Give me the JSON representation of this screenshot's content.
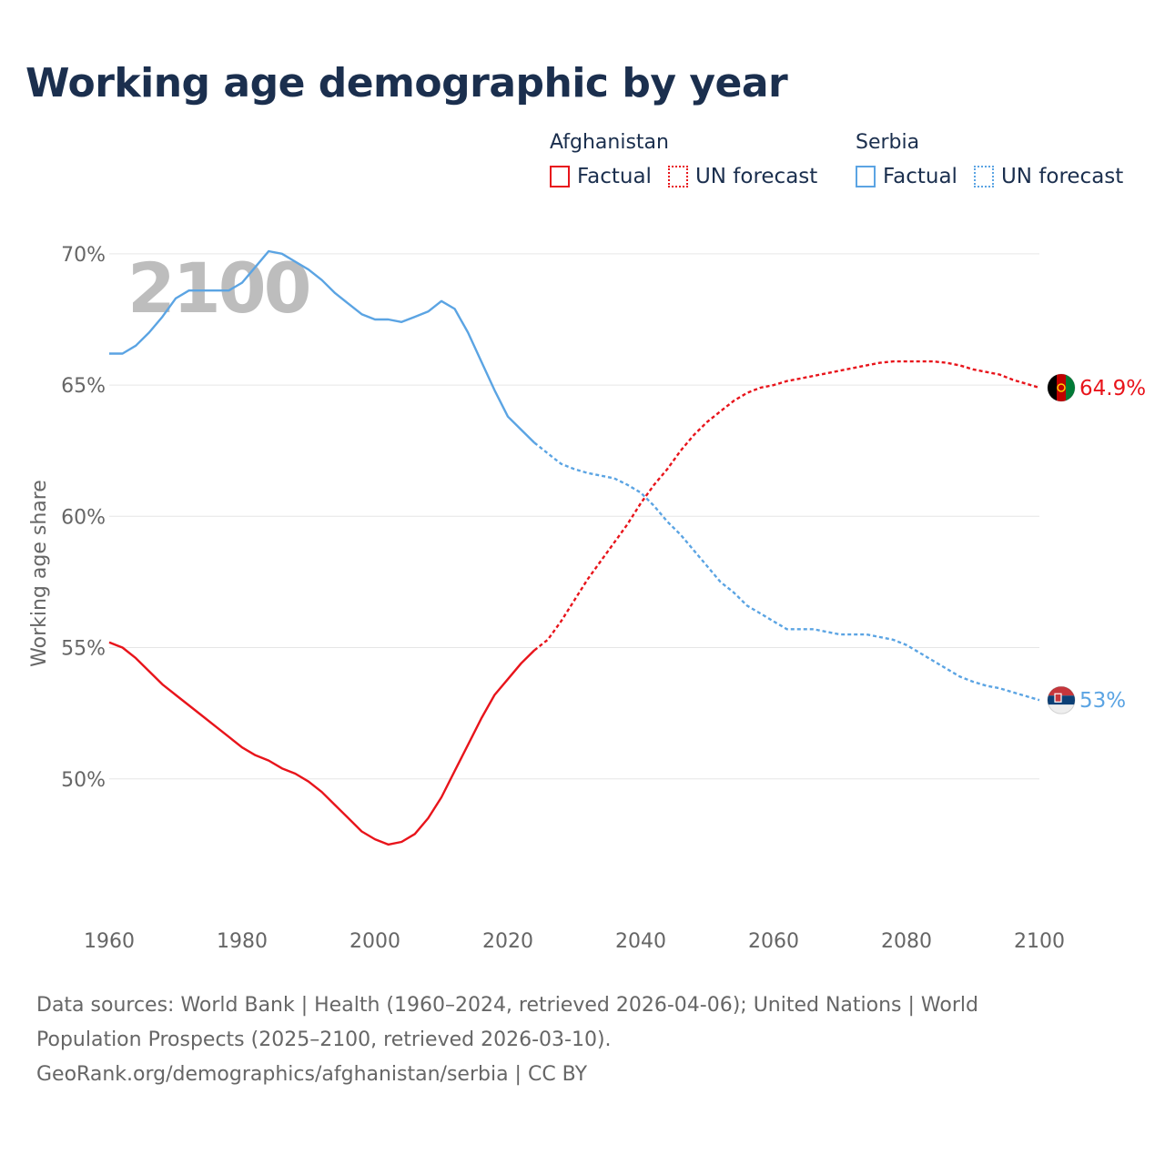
{
  "title": "Working age demographic by year",
  "legend": {
    "groups": [
      {
        "name": "Afghanistan",
        "color": "#e8141b",
        "factual_label": "Factual",
        "forecast_label": "UN forecast"
      },
      {
        "name": "Serbia",
        "color": "#5ba4e3",
        "factual_label": "Factual",
        "forecast_label": "UN forecast"
      }
    ]
  },
  "year_watermark": "2100",
  "sources": {
    "line1": "Data sources: World Bank | Health (1960–2024, retrieved 2026-04-06); United Nations | World Population Prospects (2025–2100, retrieved 2026-03-10).",
    "line2": "GeoRank.org/demographics/afghanistan/serbia | CC BY"
  },
  "chart_data": {
    "type": "line",
    "title": "Working age demographic by year",
    "xlabel": "",
    "ylabel": "Working age share",
    "xlim": [
      1960,
      2100
    ],
    "ylim": [
      45,
      71
    ],
    "x_ticks": [
      1960,
      1980,
      2000,
      2020,
      2040,
      2060,
      2080,
      2100
    ],
    "x_tick_labels": [
      "1960",
      "1980",
      "2000",
      "2020",
      "2040",
      "2060",
      "2080",
      "2100"
    ],
    "y_ticks": [
      50,
      55,
      60,
      65,
      70
    ],
    "y_tick_labels": [
      "50%",
      "55%",
      "60%",
      "65%",
      "70%"
    ],
    "grid": true,
    "series": [
      {
        "name": "Afghanistan",
        "color": "#e8141b",
        "end_label": "64.9%",
        "factual_points": [
          [
            1960,
            55.2
          ],
          [
            1962,
            55.0
          ],
          [
            1964,
            54.6
          ],
          [
            1966,
            54.1
          ],
          [
            1968,
            53.6
          ],
          [
            1970,
            53.2
          ],
          [
            1972,
            52.8
          ],
          [
            1974,
            52.4
          ],
          [
            1976,
            52.0
          ],
          [
            1978,
            51.6
          ],
          [
            1980,
            51.2
          ],
          [
            1982,
            50.9
          ],
          [
            1984,
            50.7
          ],
          [
            1986,
            50.4
          ],
          [
            1988,
            50.2
          ],
          [
            1990,
            49.9
          ],
          [
            1992,
            49.5
          ],
          [
            1994,
            49.0
          ],
          [
            1996,
            48.5
          ],
          [
            1998,
            48.0
          ],
          [
            2000,
            47.7
          ],
          [
            2002,
            47.5
          ],
          [
            2004,
            47.6
          ],
          [
            2006,
            47.9
          ],
          [
            2008,
            48.5
          ],
          [
            2010,
            49.3
          ],
          [
            2012,
            50.3
          ],
          [
            2014,
            51.3
          ],
          [
            2016,
            52.3
          ],
          [
            2018,
            53.2
          ],
          [
            2020,
            53.8
          ],
          [
            2022,
            54.4
          ],
          [
            2024,
            54.9
          ]
        ],
        "forecast_points": [
          [
            2024,
            54.9
          ],
          [
            2026,
            55.3
          ],
          [
            2028,
            56.0
          ],
          [
            2030,
            56.8
          ],
          [
            2032,
            57.6
          ],
          [
            2034,
            58.3
          ],
          [
            2036,
            59.0
          ],
          [
            2038,
            59.7
          ],
          [
            2040,
            60.5
          ],
          [
            2042,
            61.2
          ],
          [
            2044,
            61.8
          ],
          [
            2046,
            62.5
          ],
          [
            2048,
            63.1
          ],
          [
            2050,
            63.6
          ],
          [
            2052,
            64.0
          ],
          [
            2054,
            64.4
          ],
          [
            2056,
            64.7
          ],
          [
            2058,
            64.9
          ],
          [
            2060,
            65.0
          ],
          [
            2062,
            65.15
          ],
          [
            2064,
            65.25
          ],
          [
            2066,
            65.35
          ],
          [
            2068,
            65.45
          ],
          [
            2070,
            65.55
          ],
          [
            2072,
            65.65
          ],
          [
            2074,
            65.75
          ],
          [
            2076,
            65.85
          ],
          [
            2078,
            65.9
          ],
          [
            2080,
            65.9
          ],
          [
            2082,
            65.9
          ],
          [
            2084,
            65.9
          ],
          [
            2086,
            65.85
          ],
          [
            2088,
            65.75
          ],
          [
            2090,
            65.6
          ],
          [
            2092,
            65.5
          ],
          [
            2094,
            65.4
          ],
          [
            2096,
            65.2
          ],
          [
            2098,
            65.05
          ],
          [
            2100,
            64.9
          ]
        ]
      },
      {
        "name": "Serbia",
        "color": "#5ba4e3",
        "end_label": "53%",
        "factual_points": [
          [
            1960,
            66.2
          ],
          [
            1962,
            66.2
          ],
          [
            1964,
            66.5
          ],
          [
            1966,
            67.0
          ],
          [
            1968,
            67.6
          ],
          [
            1970,
            68.3
          ],
          [
            1972,
            68.6
          ],
          [
            1974,
            68.6
          ],
          [
            1976,
            68.6
          ],
          [
            1978,
            68.6
          ],
          [
            1980,
            68.9
          ],
          [
            1982,
            69.5
          ],
          [
            1984,
            70.1
          ],
          [
            1986,
            70.0
          ],
          [
            1988,
            69.7
          ],
          [
            1990,
            69.4
          ],
          [
            1992,
            69.0
          ],
          [
            1994,
            68.5
          ],
          [
            1996,
            68.1
          ],
          [
            1998,
            67.7
          ],
          [
            2000,
            67.5
          ],
          [
            2002,
            67.5
          ],
          [
            2004,
            67.4
          ],
          [
            2006,
            67.6
          ],
          [
            2008,
            67.8
          ],
          [
            2010,
            68.2
          ],
          [
            2012,
            67.9
          ],
          [
            2014,
            67.0
          ],
          [
            2016,
            65.9
          ],
          [
            2018,
            64.8
          ],
          [
            2020,
            63.8
          ],
          [
            2022,
            63.3
          ],
          [
            2024,
            62.8
          ]
        ],
        "forecast_points": [
          [
            2024,
            62.8
          ],
          [
            2026,
            62.4
          ],
          [
            2028,
            62.0
          ],
          [
            2030,
            61.8
          ],
          [
            2032,
            61.65
          ],
          [
            2034,
            61.55
          ],
          [
            2036,
            61.45
          ],
          [
            2038,
            61.2
          ],
          [
            2040,
            60.9
          ],
          [
            2042,
            60.4
          ],
          [
            2044,
            59.8
          ],
          [
            2046,
            59.3
          ],
          [
            2048,
            58.7
          ],
          [
            2050,
            58.1
          ],
          [
            2052,
            57.5
          ],
          [
            2054,
            57.1
          ],
          [
            2056,
            56.6
          ],
          [
            2058,
            56.3
          ],
          [
            2060,
            56.0
          ],
          [
            2062,
            55.7
          ],
          [
            2064,
            55.7
          ],
          [
            2066,
            55.7
          ],
          [
            2068,
            55.6
          ],
          [
            2070,
            55.5
          ],
          [
            2072,
            55.5
          ],
          [
            2074,
            55.5
          ],
          [
            2076,
            55.4
          ],
          [
            2078,
            55.3
          ],
          [
            2080,
            55.1
          ],
          [
            2082,
            54.8
          ],
          [
            2084,
            54.5
          ],
          [
            2086,
            54.2
          ],
          [
            2088,
            53.9
          ],
          [
            2090,
            53.7
          ],
          [
            2092,
            53.55
          ],
          [
            2094,
            53.45
          ],
          [
            2096,
            53.3
          ],
          [
            2098,
            53.15
          ],
          [
            2100,
            53.0
          ]
        ]
      }
    ]
  }
}
